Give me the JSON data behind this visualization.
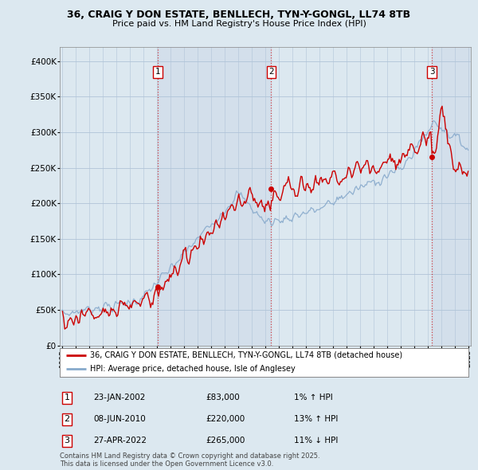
{
  "title_line1": "36, CRAIG Y DON ESTATE, BENLLECH, TYN-Y-GONGL, LL74 8TB",
  "title_line2": "Price paid vs. HM Land Registry's House Price Index (HPI)",
  "ylim": [
    0,
    420000
  ],
  "yticks": [
    0,
    50000,
    100000,
    150000,
    200000,
    250000,
    300000,
    350000,
    400000
  ],
  "ytick_labels": [
    "£0",
    "£50K",
    "£100K",
    "£150K",
    "£200K",
    "£250K",
    "£300K",
    "£350K",
    "£400K"
  ],
  "sale_dates_year": [
    2002.07,
    2010.44,
    2022.32
  ],
  "sale_prices": [
    83000,
    220000,
    265000
  ],
  "sale_labels": [
    "1",
    "2",
    "3"
  ],
  "vline_color": "#cc0000",
  "legend_line1_label": "36, CRAIG Y DON ESTATE, BENLLECH, TYN-Y-GONGL, LL74 8TB (detached house)",
  "legend_line1_color": "#cc0000",
  "legend_line2_label": "HPI: Average price, detached house, Isle of Anglesey",
  "legend_line2_color": "#88aacc",
  "table_rows": [
    {
      "num": "1",
      "date": "23-JAN-2002",
      "price": "£83,000",
      "hpi": "1% ↑ HPI"
    },
    {
      "num": "2",
      "date": "08-JUN-2010",
      "price": "£220,000",
      "hpi": "13% ↑ HPI"
    },
    {
      "num": "3",
      "date": "27-APR-2022",
      "price": "£265,000",
      "hpi": "11% ↓ HPI"
    }
  ],
  "footnote": "Contains HM Land Registry data © Crown copyright and database right 2025.\nThis data is licensed under the Open Government Licence v3.0.",
  "bg_color": "#dce8f0",
  "plot_bg_color": "#dce8f0",
  "grid_color": "#b0c4d8",
  "start_year": 1995,
  "end_year": 2025
}
